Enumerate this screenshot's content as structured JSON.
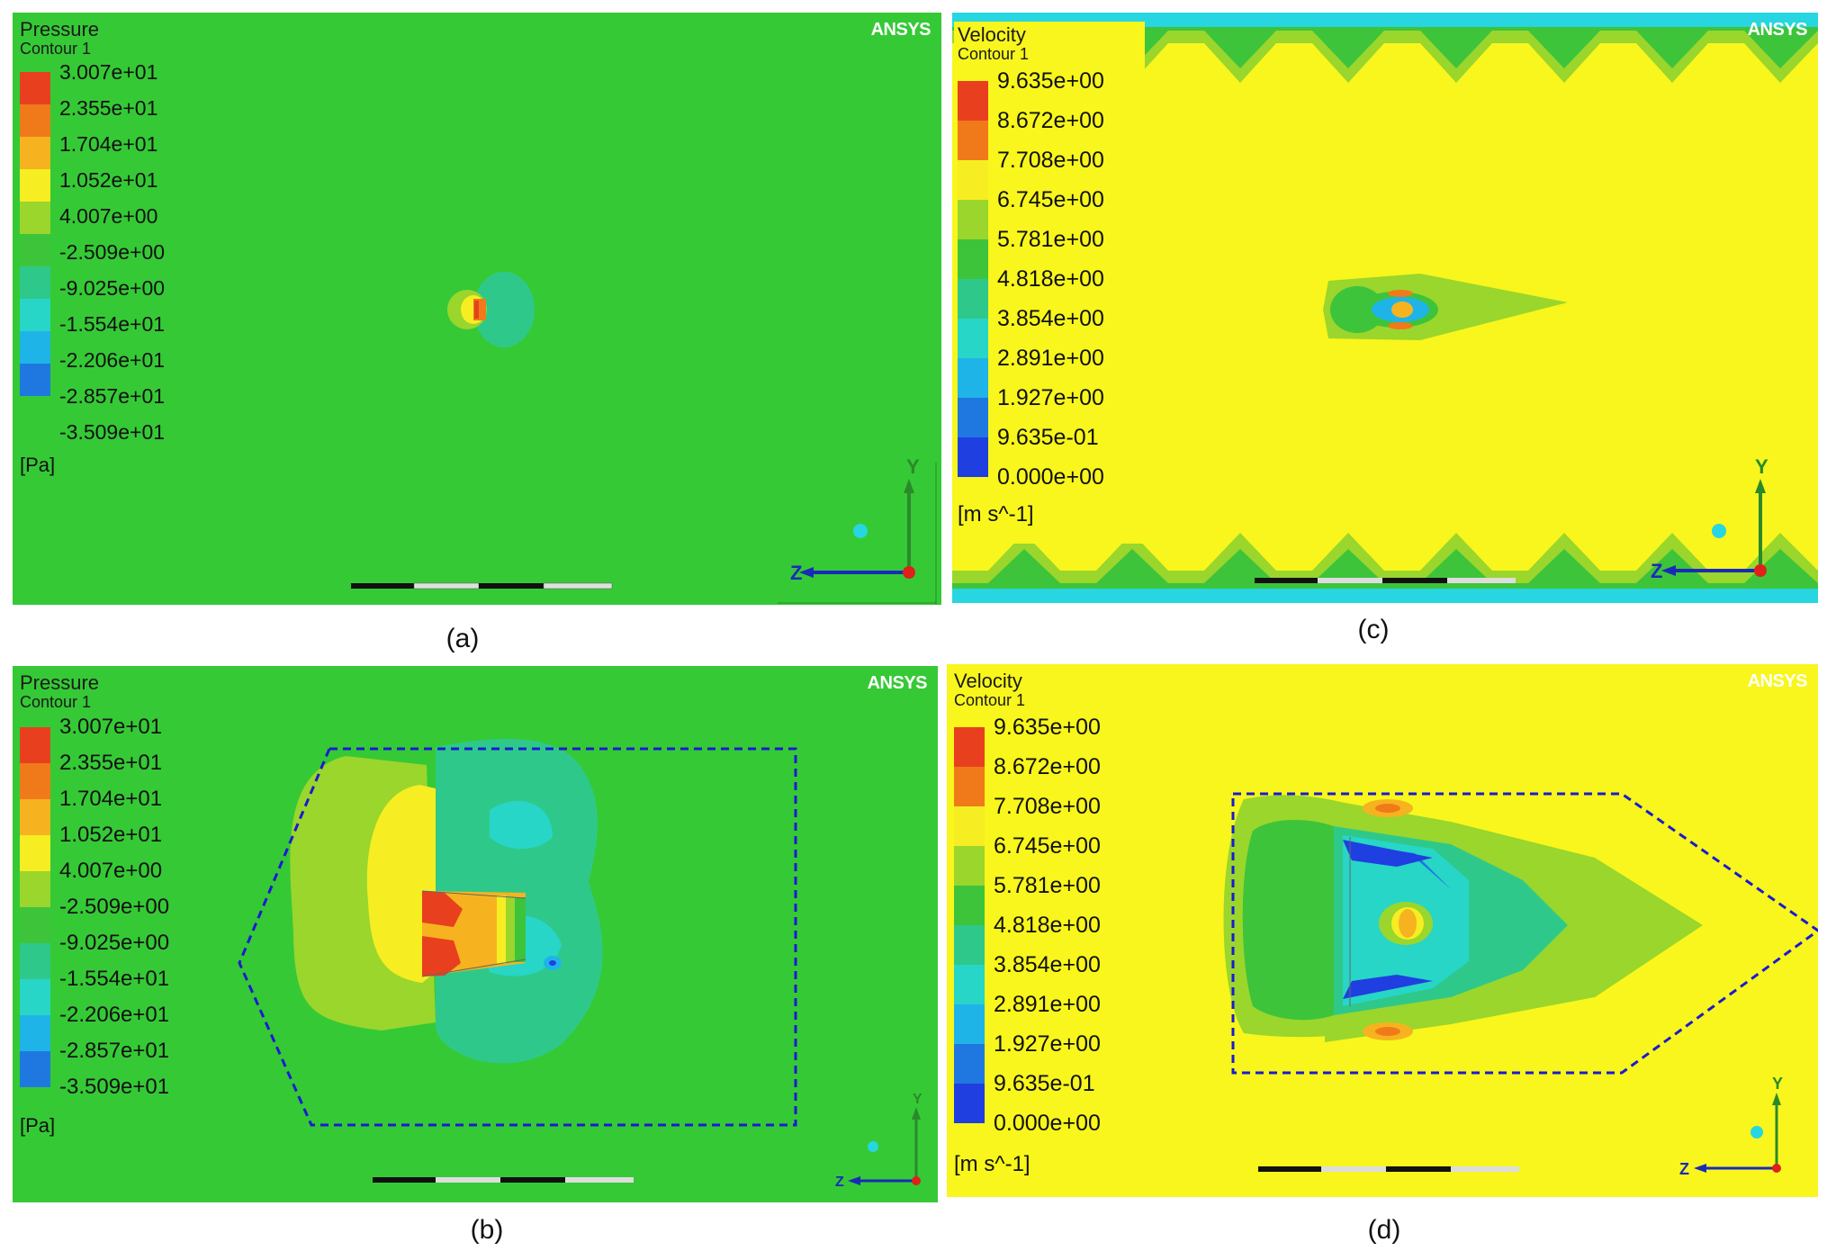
{
  "pressure_legend": {
    "title": "Pressure",
    "subtitle": "Contour 1",
    "ticks": [
      "3.007e+01",
      "2.355e+01",
      "1.704e+01",
      "1.052e+01",
      "4.007e+00",
      "-2.509e+00",
      "-9.025e+00",
      "-1.554e+01",
      "-2.206e+01",
      "-2.857e+01",
      "-3.509e+01"
    ],
    "unit": "[Pa]",
    "colors": [
      "#e8401e",
      "#f07a1a",
      "#f6b31f",
      "#f6ee22",
      "#9ad62c",
      "#3dc43b",
      "#2ec98a",
      "#27d6c6",
      "#1fb4e8",
      "#1f78e0",
      "#1f3fe0"
    ]
  },
  "velocity_legend": {
    "title": "Velocity",
    "subtitle": "Contour 1",
    "ticks": [
      "9.635e+00",
      "8.672e+00",
      "7.708e+00",
      "6.745e+00",
      "5.781e+00",
      "4.818e+00",
      "3.854e+00",
      "2.891e+00",
      "1.927e+00",
      "9.635e-01",
      "0.000e+00"
    ],
    "unit": "[m s^-1]",
    "colors": [
      "#e8401e",
      "#f07a1a",
      "#f6ee22",
      "#9ad62c",
      "#3dc43b",
      "#2ec98a",
      "#27d6c6",
      "#1fb4e8",
      "#1f78e0",
      "#1f3fe0"
    ]
  },
  "logo": "ANSYS",
  "axes": {
    "y": "Y",
    "z": "Z"
  },
  "captions": {
    "a": "(a)",
    "b": "(b)",
    "c": "(c)",
    "d": "(d)"
  },
  "colors": {
    "pressure_bg": "#35c936",
    "velocity_bg": "#f8f61c",
    "outline": "#1a1ad0"
  }
}
